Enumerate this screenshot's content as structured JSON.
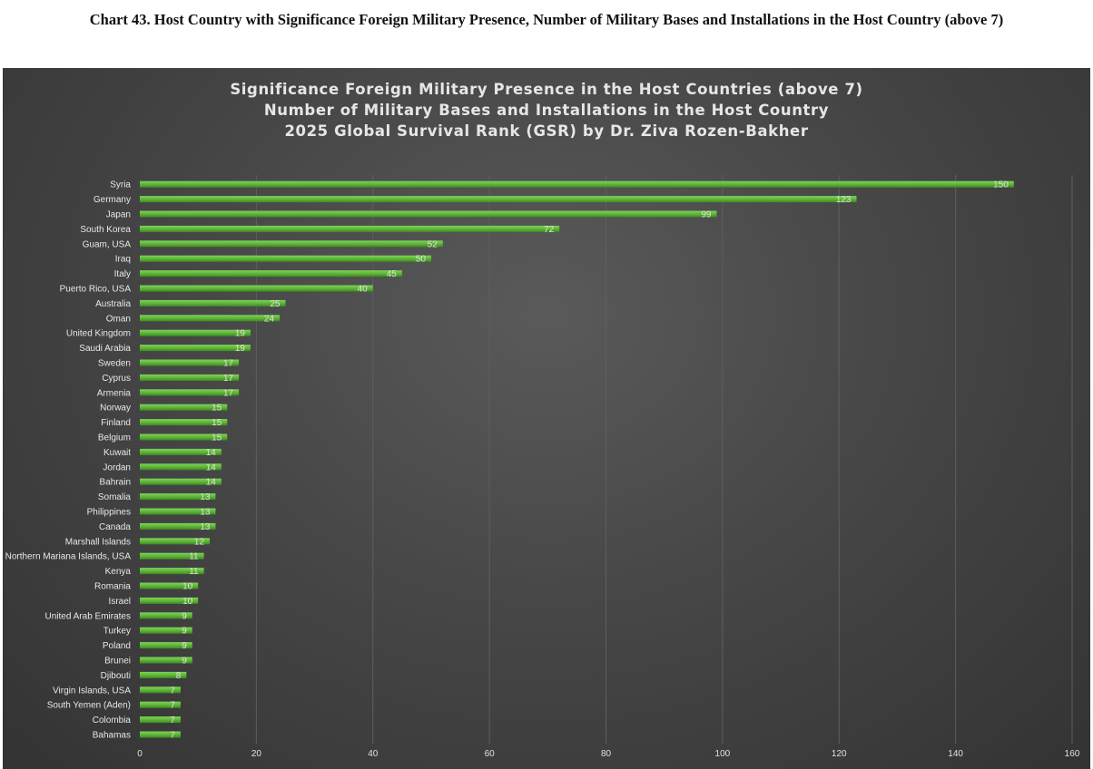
{
  "caption": "Chart 43. Host Country with Significance Foreign Military Presence, Number of Military Bases and Installations in the Host Country (above 7)",
  "chart_data": {
    "type": "bar",
    "orientation": "horizontal",
    "title_lines": [
      "Significance Foreign Military Presence in the Host Countries (above 7)",
      "Number of Military Bases and Installations in the Host Country",
      "2025 Global Survival Rank (GSR) by Dr. Ziva Rozen-Bakher"
    ],
    "categories": [
      "Syria",
      "Germany",
      "Japan",
      "South Korea",
      "Guam, USA",
      "Iraq",
      "Italy",
      "Puerto Rico, USA",
      "Australia",
      "Oman",
      "United Kingdom",
      "Saudi Arabia",
      "Sweden",
      "Cyprus",
      "Armenia",
      "Norway",
      "Finland",
      "Belgium",
      "Kuwait",
      "Jordan",
      "Bahrain",
      "Somalia",
      "Philippines",
      "Canada",
      "Marshall Islands",
      "Northern Mariana Islands, USA",
      "Kenya",
      "Romania",
      "Israel",
      "United Arab Emirates",
      "Turkey",
      "Poland",
      "Brunei",
      "Djibouti",
      "Virgin Islands, USA",
      "South Yemen (Aden)",
      "Colombia",
      "Bahamas"
    ],
    "values": [
      150,
      123,
      99,
      72,
      52,
      50,
      45,
      40,
      25,
      24,
      19,
      19,
      17,
      17,
      17,
      15,
      15,
      15,
      14,
      14,
      14,
      13,
      13,
      13,
      12,
      11,
      11,
      10,
      10,
      9,
      9,
      9,
      9,
      8,
      7,
      7,
      7,
      7
    ],
    "xlim": [
      0,
      160
    ],
    "xticks": [
      0,
      20,
      40,
      60,
      80,
      100,
      120,
      140,
      160
    ],
    "grid": "vertical",
    "data_labels": "inside-end",
    "colors": {
      "bar": "#5cb336",
      "background": "#474747",
      "text": "#e6e6e6"
    }
  }
}
